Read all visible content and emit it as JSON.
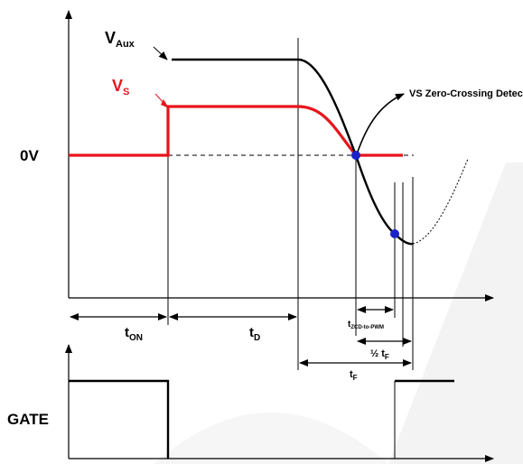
{
  "labels": {
    "v_aux_main": "V",
    "v_aux_sub": "Aux",
    "v_s_main": "V",
    "v_s_sub": "S",
    "zero_volt": "0V",
    "zero_cross_detect": "VS Zero-Crossing Detect",
    "t_on_main": "t",
    "t_on_sub": "ON",
    "t_d_main": "t",
    "t_d_sub": "D",
    "t_zcd_main": "t",
    "t_zcd_sub": "ZCD-to-PWM",
    "half_tf_main": "½ t",
    "half_tf_sub": "F",
    "t_f_main": "t",
    "t_f_sub": "F",
    "gate": "GATE"
  },
  "colors": {
    "v_aux_trace": "#000000",
    "v_s_trace": "#e8141c",
    "v_s_label": "#e8141c",
    "marker_dot": "#1a22c8",
    "axis": "#000000",
    "watermark": "#f0f0f0"
  }
}
